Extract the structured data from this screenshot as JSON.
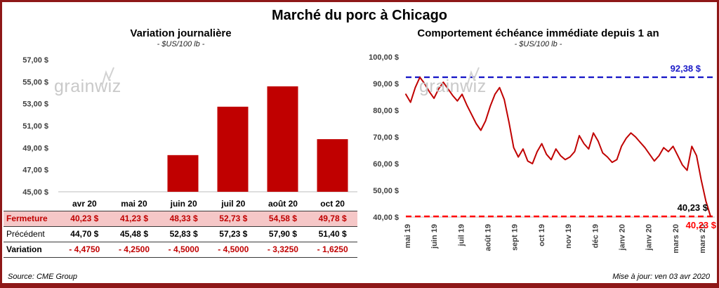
{
  "page": {
    "title": "Marché du porc à Chicago",
    "source": "Source: CME Group",
    "updated": "Mise à jour: ven 03 avr 2020",
    "watermark": "grainwiz"
  },
  "colors": {
    "bar": "#c00000",
    "line": "#c00000",
    "max_dash": "#1a1ac8",
    "min_dash": "#ff0000",
    "highlight_row_bg": "#f5c7c7",
    "negative_text": "#c00000",
    "frame": "#8e1818"
  },
  "chart_data": [
    {
      "type": "bar",
      "title": "Variation journalière",
      "subtitle": "- $US/100 lb -",
      "categories": [
        "avr 20",
        "mai 20",
        "juin 20",
        "juil 20",
        "août 20",
        "oct 20"
      ],
      "values": [
        40.23,
        41.23,
        48.33,
        52.73,
        54.58,
        49.78
      ],
      "ylim": [
        45,
        57
      ],
      "ytick_step": 2,
      "ytick_labels": [
        "45,00 $",
        "47,00 $",
        "49,00 $",
        "51,00 $",
        "53,00 $",
        "55,00 $",
        "57,00 $"
      ],
      "grid": false,
      "note": "bars for values below the 45 axis minimum are not drawn"
    },
    {
      "type": "line",
      "title": "Comportement échéance immédiate depuis 1 an",
      "subtitle": "- $US/100 lb -",
      "ylim": [
        40,
        100
      ],
      "ytick_step": 10,
      "ytick_labels": [
        "40,00 $",
        "50,00 $",
        "60,00 $",
        "70,00 $",
        "80,00 $",
        "90,00 $",
        "100,00 $"
      ],
      "x_labels": [
        "mai 19",
        "juin 19",
        "juil 19",
        "août 19",
        "sept 19",
        "oct 19",
        "nov 19",
        "déc 19",
        "janv 20",
        "janv 20",
        "mars 20",
        "mars 20"
      ],
      "series": [
        {
          "name": "échéance immédiate",
          "values": [
            86.0,
            83.0,
            88.5,
            92.38,
            90.0,
            87.0,
            84.5,
            88.0,
            90.5,
            88.0,
            85.5,
            83.5,
            86.0,
            82.0,
            78.5,
            75.0,
            72.5,
            76.0,
            81.5,
            86.0,
            88.5,
            84.0,
            75.5,
            66.0,
            62.5,
            65.5,
            61.0,
            60.0,
            64.5,
            67.5,
            63.5,
            61.5,
            65.5,
            63.0,
            61.5,
            62.5,
            64.5,
            70.5,
            67.5,
            65.5,
            71.5,
            68.5,
            64.0,
            62.5,
            60.5,
            61.5,
            66.5,
            69.5,
            71.5,
            70.0,
            68.0,
            66.0,
            63.5,
            61.0,
            63.0,
            66.0,
            64.5,
            66.5,
            63.0,
            59.5,
            57.5,
            66.5,
            63.0,
            54.0,
            46.0,
            40.23
          ]
        }
      ],
      "max_line": {
        "value": 92.38,
        "label": "92,38 $"
      },
      "min_line": {
        "value": 40.23,
        "label_black": "40,23 $",
        "label_red": "40,23 $"
      },
      "grid": false,
      "legend": "none"
    }
  ],
  "left_table": {
    "columns": [
      "avr 20",
      "mai 20",
      "juin 20",
      "juil 20",
      "août 20",
      "oct 20"
    ],
    "rows": [
      {
        "key": "fermeture",
        "label": "Fermeture",
        "values": [
          "40,23  $",
          "41,23  $",
          "48,33  $",
          "52,73  $",
          "54,58  $",
          "49,78  $"
        ]
      },
      {
        "key": "precedent",
        "label": "Précédent",
        "values": [
          "44,70  $",
          "45,48  $",
          "52,83  $",
          "57,23  $",
          "57,90  $",
          "51,40  $"
        ]
      },
      {
        "key": "variation",
        "label": "Variation",
        "values": [
          "- 4,4750",
          "- 4,2500",
          "- 4,5000",
          "- 4,5000",
          "- 3,3250",
          "- 1,6250"
        ]
      }
    ]
  }
}
